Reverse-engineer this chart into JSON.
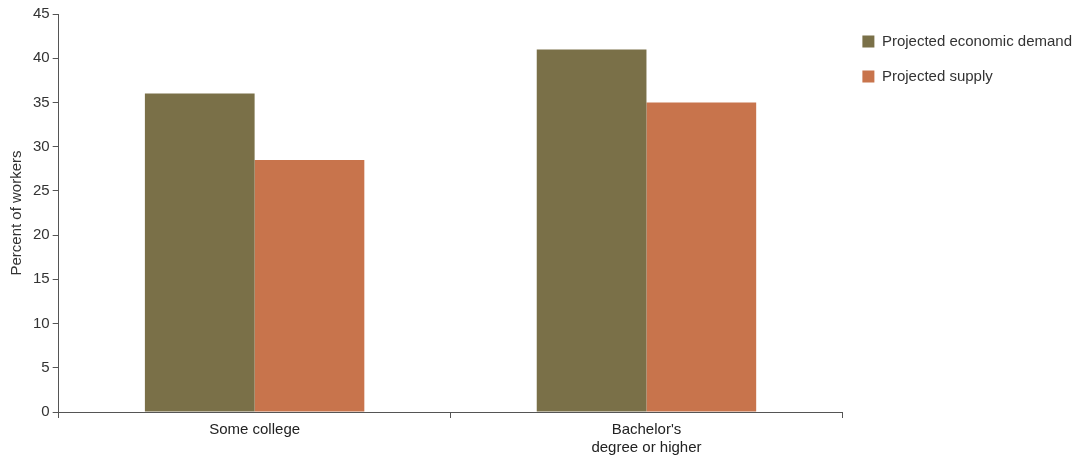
{
  "chart_data": {
    "type": "bar",
    "ylabel": "Percent of workers",
    "categories": [
      "Some college",
      "Bachelor's degree or higher"
    ],
    "series": [
      {
        "name": "Projected economic demand",
        "color": "#7a7048",
        "values": [
          36,
          41
        ]
      },
      {
        "name": "Projected supply",
        "color": "#c8744c",
        "values": [
          28.5,
          35
        ]
      }
    ],
    "ylim": [
      0,
      45
    ],
    "yticks": [
      0,
      5,
      10,
      15,
      20,
      25,
      30,
      35,
      40,
      45
    ],
    "grid": false,
    "legend": "right"
  }
}
